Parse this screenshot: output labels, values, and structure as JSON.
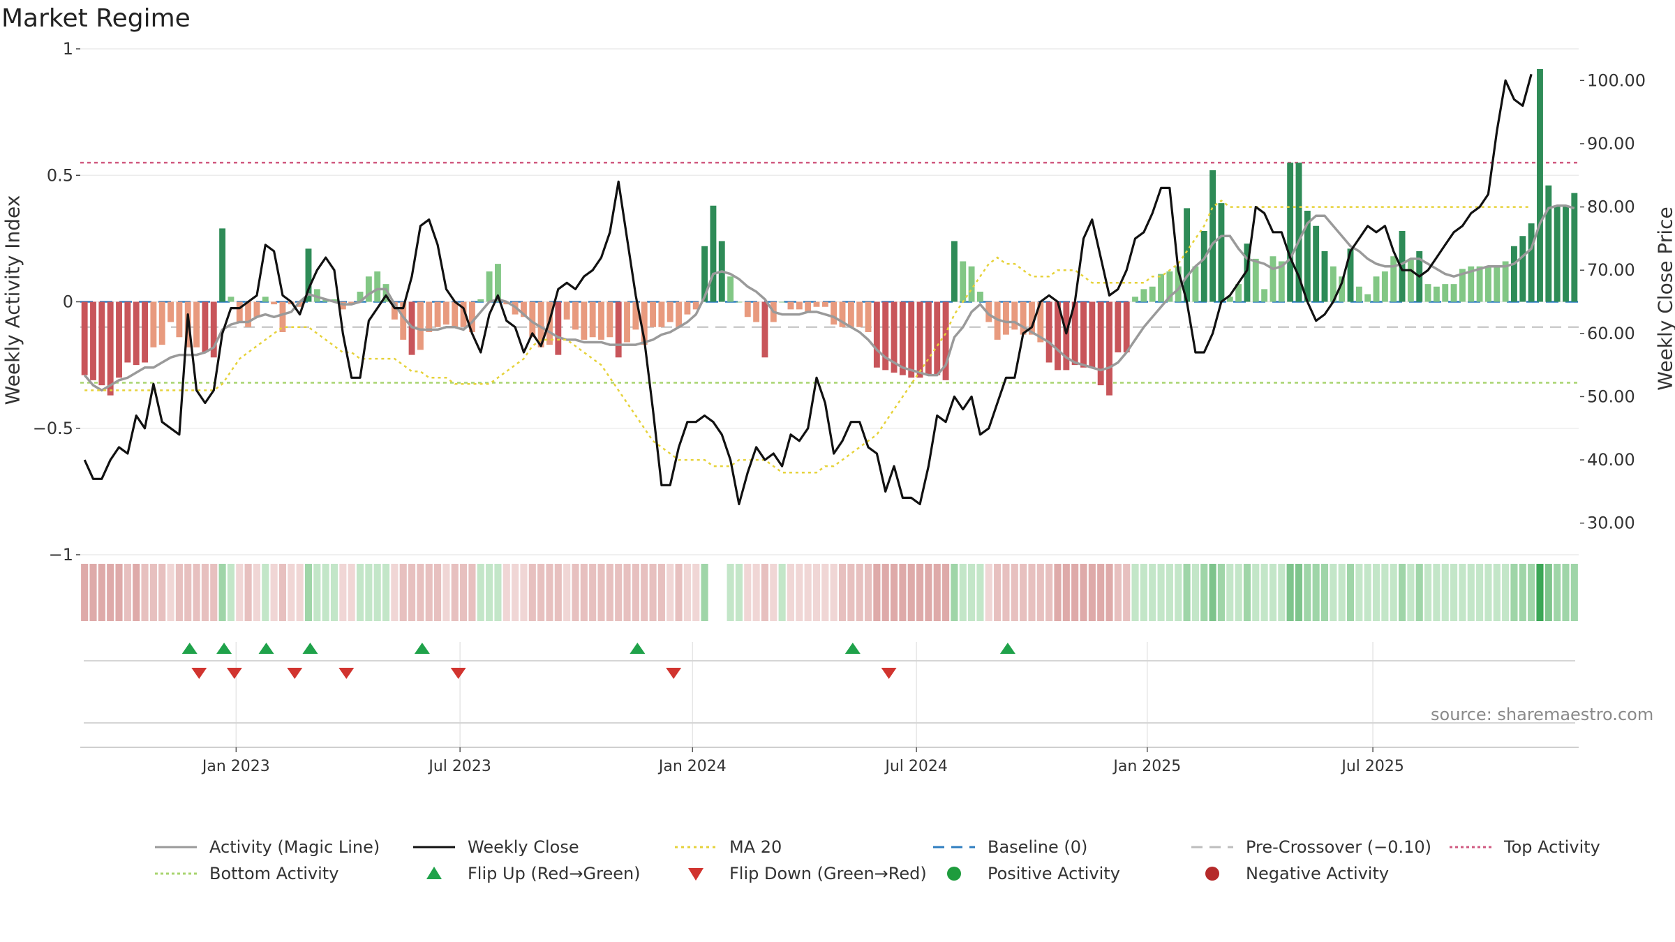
{
  "title": "Market Regime",
  "source": "source: sharemaestro.com",
  "chart_data": {
    "type": "bar",
    "title": "Market Regime",
    "ylabel": "Weekly Activity Index",
    "y2label": "Weekly Close Price",
    "ylim": [
      -1,
      1
    ],
    "y2lim": [
      25,
      105
    ],
    "left_ticks": [
      "1",
      "0.5",
      "0",
      "−0.5",
      "−1"
    ],
    "left_tick_values": [
      1,
      0.5,
      0,
      -0.5,
      -1
    ],
    "right_ticks": [
      "100.00",
      "90.00",
      "80.00",
      "70.00",
      "60.00",
      "50.00",
      "40.00",
      "30.00"
    ],
    "right_tick_values": [
      100,
      90,
      80,
      70,
      60,
      50,
      40,
      30
    ],
    "x_ticks": [
      "Jan 2023",
      "Jul 2023",
      "Jan 2024",
      "Jul 2024",
      "Jan 2025",
      "Jul 2025"
    ],
    "x_tick_weeks": [
      17.6,
      43.6,
      70.6,
      96.6,
      123.4,
      149.6
    ],
    "reference_lines": {
      "top_activity": 0.55,
      "bottom_activity": -0.32,
      "pre_crossover": -0.1,
      "baseline": 0
    },
    "activity": [
      -0.29,
      -0.31,
      -0.33,
      -0.37,
      -0.3,
      -0.24,
      -0.25,
      -0.24,
      -0.18,
      -0.17,
      -0.08,
      -0.14,
      -0.18,
      -0.18,
      -0.2,
      -0.22,
      0.29,
      0.02,
      -0.08,
      -0.1,
      -0.06,
      0.02,
      -0.01,
      -0.12,
      -0.01,
      -0.02,
      0.21,
      0.05,
      0.01,
      0.01,
      -0.03,
      -0.01,
      0.04,
      0.1,
      0.12,
      0.07,
      -0.07,
      -0.15,
      -0.21,
      -0.19,
      -0.12,
      -0.1,
      -0.09,
      -0.1,
      -0.1,
      -0.12,
      0.01,
      0.12,
      0.15,
      -0.01,
      -0.05,
      -0.06,
      -0.14,
      -0.18,
      -0.17,
      -0.21,
      -0.07,
      -0.11,
      -0.15,
      -0.14,
      -0.15,
      -0.14,
      -0.22,
      -0.16,
      -0.11,
      -0.17,
      -0.1,
      -0.1,
      -0.08,
      -0.1,
      -0.05,
      -0.03,
      0.22,
      0.38,
      0.24,
      0.1,
      0.0,
      -0.06,
      -0.08,
      -0.22,
      -0.08,
      0.0,
      -0.03,
      -0.03,
      -0.04,
      -0.02,
      -0.02,
      -0.09,
      -0.1,
      -0.1,
      -0.1,
      -0.12,
      -0.26,
      -0.27,
      -0.28,
      -0.29,
      -0.3,
      -0.3,
      -0.29,
      -0.29,
      -0.31,
      0.24,
      0.16,
      0.14,
      0.04,
      -0.08,
      -0.15,
      -0.13,
      -0.11,
      -0.13,
      -0.13,
      -0.16,
      -0.24,
      -0.27,
      -0.27,
      -0.25,
      -0.26,
      -0.26,
      -0.33,
      -0.37,
      -0.2,
      -0.2,
      0.02,
      0.05,
      0.06,
      0.11,
      0.12,
      0.14,
      0.37,
      0.14,
      0.28,
      0.52,
      0.39,
      0.02,
      0.07,
      0.23,
      0.17,
      0.05,
      0.18,
      0.16,
      0.55,
      0.55,
      0.36,
      0.3,
      0.2,
      0.14,
      0.1,
      0.21,
      0.06,
      0.03,
      0.1,
      0.12,
      0.18,
      0.28,
      0.17,
      0.2,
      0.07,
      0.06,
      0.07,
      0.07,
      0.13,
      0.14,
      0.14,
      0.14,
      0.14,
      0.16,
      0.22,
      0.26,
      0.31,
      0.92,
      0.46,
      0.38,
      0.38,
      0.43
    ],
    "activity_smooth": [
      -0.29,
      -0.33,
      -0.35,
      -0.33,
      -0.31,
      -0.3,
      -0.28,
      -0.26,
      -0.26,
      -0.24,
      -0.22,
      -0.21,
      -0.21,
      -0.21,
      -0.2,
      -0.18,
      -0.11,
      -0.09,
      -0.08,
      -0.08,
      -0.06,
      -0.05,
      -0.06,
      -0.05,
      -0.04,
      0.0,
      0.03,
      0.02,
      0.01,
      -0.0,
      -0.01,
      -0.01,
      -0.0,
      0.03,
      0.05,
      0.05,
      -0.01,
      -0.06,
      -0.1,
      -0.11,
      -0.11,
      -0.11,
      -0.1,
      -0.1,
      -0.11,
      -0.08,
      -0.04,
      -0.0,
      0.01,
      0.0,
      -0.02,
      -0.05,
      -0.08,
      -0.1,
      -0.12,
      -0.14,
      -0.15,
      -0.15,
      -0.16,
      -0.16,
      -0.16,
      -0.17,
      -0.17,
      -0.17,
      -0.17,
      -0.16,
      -0.15,
      -0.13,
      -0.12,
      -0.1,
      -0.08,
      -0.05,
      0.02,
      0.11,
      0.12,
      0.11,
      0.09,
      0.06,
      0.04,
      0.01,
      -0.04,
      -0.05,
      -0.05,
      -0.05,
      -0.04,
      -0.04,
      -0.05,
      -0.06,
      -0.08,
      -0.1,
      -0.12,
      -0.15,
      -0.19,
      -0.22,
      -0.24,
      -0.26,
      -0.27,
      -0.28,
      -0.29,
      -0.29,
      -0.25,
      -0.14,
      -0.1,
      -0.04,
      -0.01,
      -0.05,
      -0.07,
      -0.08,
      -0.08,
      -0.1,
      -0.12,
      -0.14,
      -0.16,
      -0.19,
      -0.22,
      -0.24,
      -0.25,
      -0.26,
      -0.27,
      -0.26,
      -0.24,
      -0.2,
      -0.15,
      -0.1,
      -0.06,
      -0.02,
      0.02,
      0.05,
      0.1,
      0.14,
      0.17,
      0.23,
      0.26,
      0.26,
      0.21,
      0.17,
      0.16,
      0.15,
      0.13,
      0.14,
      0.17,
      0.24,
      0.31,
      0.34,
      0.34,
      0.3,
      0.26,
      0.22,
      0.2,
      0.17,
      0.15,
      0.14,
      0.14,
      0.15,
      0.17,
      0.17,
      0.15,
      0.13,
      0.11,
      0.1,
      0.11,
      0.12,
      0.13,
      0.14,
      0.14,
      0.14,
      0.15,
      0.18,
      0.21,
      0.31,
      0.37,
      0.38,
      0.38,
      0.37
    ],
    "weekly_close": [
      40,
      37,
      37,
      40,
      42,
      41,
      47,
      45,
      52,
      46,
      45,
      44,
      63,
      51,
      49,
      51,
      60,
      64,
      64,
      65,
      66,
      74,
      73,
      66,
      65,
      63,
      67,
      70,
      72,
      70,
      60,
      53,
      53,
      62,
      64,
      66,
      64,
      64,
      69,
      77,
      78,
      74,
      67,
      65,
      64,
      60,
      57,
      63,
      66,
      62,
      61,
      57,
      60,
      58,
      62,
      67,
      68,
      67,
      69,
      70,
      72,
      76,
      84,
      75,
      66,
      59,
      48,
      36,
      36,
      42,
      46,
      46,
      47,
      46,
      44,
      40,
      33,
      38,
      42,
      40,
      41,
      39,
      44,
      43,
      45,
      53,
      49,
      41,
      43,
      46,
      46,
      42,
      41,
      35,
      39,
      34,
      34,
      33,
      39,
      47,
      46,
      50,
      48,
      50,
      44,
      45,
      49,
      53,
      53,
      60,
      61,
      65,
      66,
      65,
      60,
      65,
      75,
      78,
      72,
      66,
      67,
      70,
      75,
      76,
      79,
      83,
      83,
      70,
      65,
      57,
      57,
      60,
      65,
      66,
      68,
      70,
      80,
      79,
      76,
      76,
      72,
      69,
      65,
      62,
      63,
      65,
      68,
      73,
      75,
      77,
      76,
      77,
      73,
      70,
      70,
      69,
      70,
      72,
      74,
      76,
      77,
      79,
      80,
      82,
      92,
      100,
      97,
      96,
      101
    ],
    "ma20": [
      51,
      51,
      51,
      51,
      51,
      51,
      51,
      51,
      51,
      51,
      51,
      51,
      51,
      51,
      51,
      51,
      52,
      54,
      56,
      57,
      58,
      59,
      60,
      61,
      61,
      61,
      61,
      60,
      59,
      58,
      57,
      57,
      56,
      56,
      56,
      56,
      56,
      55,
      54,
      54,
      53,
      53,
      53,
      52,
      52,
      52,
      52,
      52,
      53,
      54,
      55,
      56,
      58,
      59,
      59,
      59,
      59,
      58,
      57,
      56,
      55,
      53,
      51,
      49,
      47,
      45,
      43,
      42,
      41,
      40,
      40,
      40,
      40,
      39,
      39,
      39,
      40,
      40,
      40,
      40,
      39,
      38,
      38,
      38,
      38,
      38,
      39,
      39,
      40,
      41,
      42,
      43,
      44,
      46,
      48,
      50,
      52,
      54,
      56,
      58,
      60,
      63,
      65,
      67,
      69,
      71,
      72,
      71,
      71,
      70,
      69,
      69,
      69,
      70,
      70,
      70,
      69,
      68,
      68,
      68,
      68,
      68,
      68,
      68,
      69,
      69,
      70,
      71,
      73,
      75,
      77,
      80,
      81,
      80,
      80,
      80,
      80,
      80,
      80,
      80,
      80,
      80,
      80,
      80,
      80,
      80,
      80,
      80,
      80,
      80,
      80,
      80,
      80,
      80,
      80,
      80,
      80,
      80,
      80,
      80,
      80,
      80,
      80,
      80,
      80,
      80,
      80,
      80,
      80
    ],
    "flip_up_weeks": [
      12.2,
      16.2,
      21.1,
      26.2,
      39.2,
      64.2,
      89.2,
      107.2
    ],
    "flip_down_weeks": [
      13.3,
      17.4,
      24.4,
      30.4,
      43.4,
      68.4,
      93.4
    ],
    "regime_gap_weeks": [
      73,
      74
    ],
    "series": [
      {
        "name": "Activity (Magic Line)"
      },
      {
        "name": "Weekly Close"
      },
      {
        "name": "MA 20"
      },
      {
        "name": "Baseline (0)"
      },
      {
        "name": "Pre-Crossover (−0.10)"
      },
      {
        "name": "Top Activity"
      },
      {
        "name": "Bottom Activity"
      },
      {
        "name": "Flip Up (Red→Green)"
      },
      {
        "name": "Flip Down (Green→Red)"
      },
      {
        "name": "Positive Activity"
      },
      {
        "name": "Negative Activity"
      }
    ],
    "colors": {
      "pos_strong": "#2e8b57",
      "pos_weak": "#82c785",
      "neg_strong": "#c8555a",
      "neg_weak": "#e89a7e",
      "magic_line": "#9a9a9a",
      "close": "#111111",
      "ma20": "#e6d23a",
      "baseline": "#2f7ec0",
      "pre_crossover": "#bdbdbd",
      "top_activity": "#d05a80",
      "bottom_activity": "#a8d46f",
      "flip_up": "#1fa24a",
      "flip_down": "#d1342f",
      "positive_dot": "#1e9c3d",
      "negative_dot": "#b52a2a"
    }
  }
}
